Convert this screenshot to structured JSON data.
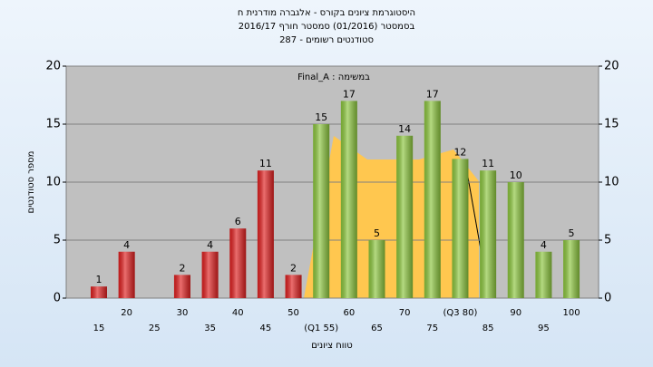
{
  "chart_data": {
    "type": "bar",
    "title": [
      "היסטוגרמת ציונים בקורס - אלגברה מודרנית ח",
      "בסמסטר  (01/2016)  סמסטר חורף 2016/17",
      "סטודנטים רשומים - 287"
    ],
    "annotation": "Final_A : במשימה",
    "y_label": "מספר סטודנטים",
    "x_label": "טווח ציונים",
    "categories": [
      "15",
      "20",
      "25",
      "30",
      "35",
      "40",
      "45",
      "50",
      "(Q1 55)",
      "60",
      "65",
      "70",
      "75",
      "(Q3 80)",
      "85",
      "90",
      "95",
      "100"
    ],
    "values": [
      1,
      4,
      null,
      2,
      4,
      6,
      11,
      2,
      15,
      17,
      5,
      14,
      17,
      12,
      11,
      10,
      4,
      5
    ],
    "colors": [
      "#e02020",
      "#e02020",
      "#e02020",
      "#e02020",
      "#e02020",
      "#e02020",
      "#e02020",
      "#e02020",
      "#8cc63e",
      "#8cc63e",
      "#8cc63e",
      "#8cc63e",
      "#8cc63e",
      "#8cc63e",
      "#8cc63e",
      "#8cc63e",
      "#8cc63e",
      "#8cc63e"
    ],
    "ylim": [
      0,
      20
    ],
    "yticks": [
      0,
      5,
      10,
      15,
      20
    ],
    "y2lim": [
      0,
      20
    ],
    "y2ticks": [
      0,
      5,
      10,
      15,
      20
    ],
    "grid": true
  }
}
